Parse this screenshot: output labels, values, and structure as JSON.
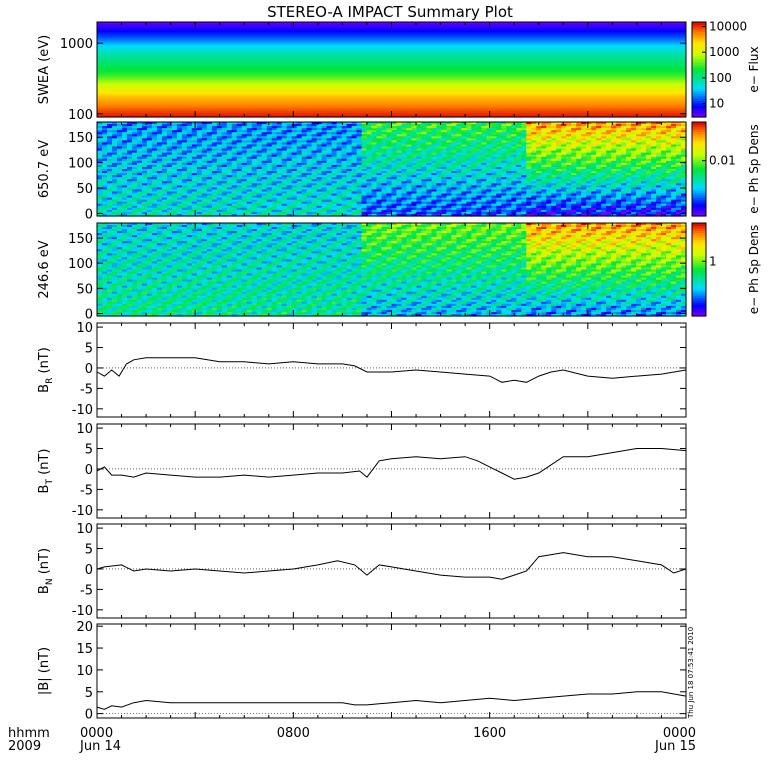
{
  "chart_data": {
    "title": "STEREO-A IMPACT Summary Plot",
    "type": "multi-panel",
    "time_axis": {
      "row_labels": [
        "hhmm",
        "2009"
      ],
      "ticks": [
        {
          "hhmm": "0000",
          "date": "Jun 14",
          "hours": 0
        },
        {
          "hhmm": "0800",
          "date": "",
          "hours": 8
        },
        {
          "hhmm": "1600",
          "date": "",
          "hours": 16
        },
        {
          "hhmm": "0000",
          "date": "Jun 15",
          "hours": 24
        }
      ],
      "range_hours": [
        0,
        24
      ]
    },
    "side_stamp": "Thu Jun 18 07:53:41 2010",
    "panels": [
      {
        "id": "swea",
        "type": "heatmap",
        "ylabel": "SWEA (eV)",
        "yscale": "log",
        "ylim": [
          90,
          2000
        ],
        "yticks": [
          {
            "value": 1000,
            "label": "1000"
          },
          {
            "value": 100,
            "label": "100"
          }
        ],
        "colorbar": {
          "label": "e− Flux",
          "scale": "log",
          "range": [
            3,
            15000
          ],
          "ticks": [
            {
              "value": 10000,
              "label": "10000"
            },
            {
              "value": 1000,
              "label": "1000"
            },
            {
              "value": 100,
              "label": "100"
            },
            {
              "value": 10,
              "label": "10"
            }
          ]
        },
        "energy_profile": [
          {
            "energy": 1900,
            "flux": 4
          },
          {
            "energy": 1500,
            "flux": 8
          },
          {
            "energy": 1200,
            "flux": 15
          },
          {
            "energy": 900,
            "flux": 40
          },
          {
            "energy": 700,
            "flux": 80
          },
          {
            "energy": 500,
            "flux": 150
          },
          {
            "energy": 350,
            "flux": 300
          },
          {
            "energy": 250,
            "flux": 1000
          },
          {
            "energy": 180,
            "flux": 3000
          },
          {
            "energy": 130,
            "flux": 6000
          },
          {
            "energy": 95,
            "flux": 12000
          }
        ]
      },
      {
        "id": "pad650",
        "type": "heatmap",
        "ylabel": "650.7 eV",
        "ylim": [
          -5,
          180
        ],
        "yticks": [
          0,
          50,
          100,
          150
        ],
        "colorbar": {
          "label": "e− Ph Sp Dens",
          "scale": "log",
          "range": [
            0.001,
            0.05
          ],
          "ticks": [
            {
              "value": 0.01,
              "label": "0.01"
            }
          ]
        },
        "regimes": [
          {
            "from_hour": 0,
            "to_hour": 10.8,
            "level_0_deg": 0.004,
            "level_180_deg": 0.0025
          },
          {
            "from_hour": 10.8,
            "to_hour": 17.5,
            "level_0_deg": 0.002,
            "level_180_deg": 0.008
          },
          {
            "from_hour": 17.5,
            "to_hour": 24,
            "level_0_deg": 0.0015,
            "level_180_deg": 0.03
          }
        ]
      },
      {
        "id": "pad246",
        "type": "heatmap",
        "ylabel": "246.6 eV",
        "ylim": [
          -5,
          180
        ],
        "yticks": [
          0,
          50,
          100,
          150
        ],
        "colorbar": {
          "label": "e− Ph Sp Dens",
          "scale": "log",
          "range": [
            0.1,
            5
          ],
          "ticks": [
            {
              "value": 1,
              "label": "1"
            }
          ]
        },
        "regimes": [
          {
            "from_hour": 0,
            "to_hour": 10.8,
            "level_0_deg": 0.5,
            "level_180_deg": 0.35
          },
          {
            "from_hour": 10.8,
            "to_hour": 17.5,
            "level_0_deg": 0.3,
            "level_180_deg": 1.0
          },
          {
            "from_hour": 17.5,
            "to_hour": 24,
            "level_0_deg": 0.25,
            "level_180_deg": 3.0
          }
        ]
      },
      {
        "id": "br",
        "type": "line",
        "ylabel": "B",
        "ylabel_sub": "R",
        "ylabel_unit": "(nT)",
        "ylim": [
          -12,
          11
        ],
        "yticks": [
          10,
          5,
          0,
          -5,
          -10
        ],
        "x": [
          0,
          0.3,
          0.6,
          0.9,
          1.2,
          1.5,
          2,
          3,
          4,
          5,
          6,
          7,
          8,
          9,
          10,
          10.5,
          11,
          12,
          13,
          14,
          15,
          16,
          16.5,
          17,
          17.5,
          18,
          18.5,
          19,
          20,
          21,
          22,
          23,
          24
        ],
        "values": [
          -1,
          -2,
          -0.5,
          -2,
          1,
          2,
          2.5,
          2.5,
          2.5,
          1.5,
          1.5,
          1,
          1.5,
          1,
          1,
          0.5,
          -1,
          -1,
          -0.5,
          -1,
          -1.5,
          -2,
          -3.5,
          -3,
          -3.5,
          -2,
          -1,
          -0.5,
          -2,
          -2.5,
          -2,
          -1.5,
          -0.5
        ]
      },
      {
        "id": "bt",
        "type": "line",
        "ylabel": "B",
        "ylabel_sub": "T",
        "ylabel_unit": "(nT)",
        "ylim": [
          -12,
          11
        ],
        "yticks": [
          10,
          5,
          0,
          -5,
          -10
        ],
        "x": [
          0,
          0.3,
          0.6,
          1,
          1.5,
          2,
          3,
          4,
          5,
          6,
          7,
          8,
          9,
          10,
          10.7,
          11,
          11.5,
          12,
          13,
          14,
          15,
          15.5,
          16,
          16.5,
          17,
          17.5,
          18,
          18.5,
          19,
          20,
          21,
          22,
          23,
          24
        ],
        "values": [
          -0.5,
          0.5,
          -1.5,
          -1.5,
          -2,
          -1,
          -1.5,
          -2,
          -2,
          -1.5,
          -2,
          -1.5,
          -1,
          -1,
          -0.5,
          -2,
          2,
          2.5,
          3,
          2.5,
          3,
          2,
          0.5,
          -1,
          -2.5,
          -2,
          -1,
          1,
          3,
          3,
          4,
          5,
          5,
          4.5
        ]
      },
      {
        "id": "bn",
        "type": "line",
        "ylabel": "B",
        "ylabel_sub": "N",
        "ylabel_unit": "(nT)",
        "ylim": [
          -12,
          11
        ],
        "yticks": [
          10,
          5,
          0,
          -5,
          -10
        ],
        "x": [
          0,
          0.3,
          1,
          1.5,
          2,
          3,
          4,
          5,
          6,
          7,
          8,
          9,
          9.8,
          10.5,
          11,
          11.5,
          12,
          13,
          14,
          15,
          16,
          16.5,
          17,
          17.5,
          18,
          19,
          20,
          21,
          22,
          23,
          23.5,
          24
        ],
        "values": [
          0,
          0.5,
          1,
          -0.5,
          0,
          -0.5,
          0,
          -0.5,
          -1,
          -0.5,
          0,
          1,
          2,
          1,
          -1.5,
          1,
          0.5,
          -0.5,
          -1.5,
          -2,
          -2,
          -2.5,
          -1.5,
          -0.5,
          3,
          4,
          3,
          3,
          2,
          1,
          -1,
          0
        ]
      },
      {
        "id": "bmag",
        "type": "line",
        "ylabel": "|B| (nT)",
        "ylim": [
          -1,
          20.5
        ],
        "yticks": [
          20,
          15,
          10,
          5,
          0
        ],
        "x": [
          0,
          0.3,
          0.6,
          1,
          1.5,
          2,
          3,
          4,
          5,
          6,
          7,
          8,
          9,
          10,
          10.5,
          11,
          12,
          13,
          14,
          15,
          16,
          17,
          18,
          19,
          20,
          21,
          22,
          23,
          24
        ],
        "values": [
          1.5,
          1,
          1.8,
          1.5,
          2.5,
          3,
          2.5,
          2.5,
          2.5,
          2.5,
          2.5,
          2.5,
          2.5,
          2.5,
          2,
          2,
          2.5,
          3,
          2.5,
          3,
          3.5,
          3,
          3.5,
          4,
          4.5,
          4.5,
          5,
          5,
          4
        ]
      }
    ]
  }
}
